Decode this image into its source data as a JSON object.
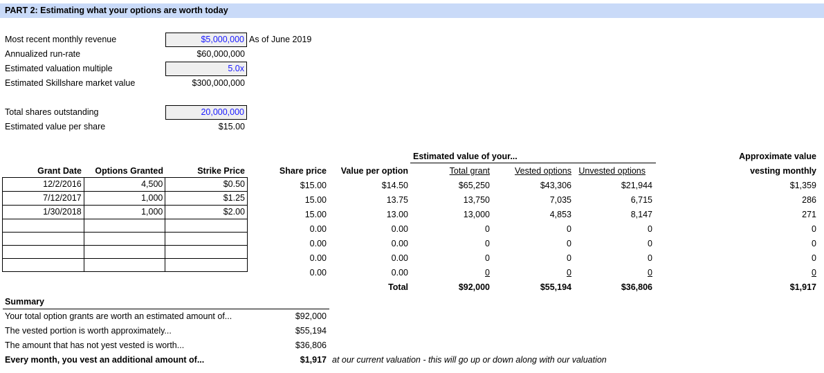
{
  "title": "PART 2: Estimating what your options are worth today",
  "inputs": {
    "monthly_revenue_label": "Most recent monthly revenue",
    "monthly_revenue": "$5,000,000",
    "as_of": "As of June 2019",
    "run_rate_label": "Annualized run-rate",
    "run_rate": "$60,000,000",
    "multiple_label": "Estimated valuation multiple",
    "multiple": "5.0x",
    "market_value_label": "Estimated Skillshare market value",
    "market_value": "$300,000,000",
    "shares_label": "Total shares outstanding",
    "shares": "20,000,000",
    "value_per_share_label": "Estimated value per share",
    "value_per_share": "$15.00"
  },
  "table": {
    "est_header": "Estimated value of your...",
    "approx_header_1": "Approximate value",
    "approx_header_2": "vesting monthly",
    "headers": {
      "grant_date": "Grant Date",
      "options_granted": "Options Granted",
      "strike_price": "Strike Price",
      "share_price": "Share price",
      "value_per_option": "Value per option",
      "total_grant": "Total grant",
      "vested": "Vested options",
      "unvested": "Unvested options"
    },
    "rows": [
      {
        "grant_date": "12/2/2016",
        "options": "4,500",
        "strike": "$0.50",
        "share_price": "$15.00",
        "vpo": "$14.50",
        "total": "$65,250",
        "vested": "$43,306",
        "unvested": "$21,944",
        "monthly": "$1,359"
      },
      {
        "grant_date": "7/12/2017",
        "options": "1,000",
        "strike": "$1.25",
        "share_price": "15.00",
        "vpo": "13.75",
        "total": "13,750",
        "vested": "7,035",
        "unvested": "6,715",
        "monthly": "286"
      },
      {
        "grant_date": "1/30/2018",
        "options": "1,000",
        "strike": "$2.00",
        "share_price": "15.00",
        "vpo": "13.00",
        "total": "13,000",
        "vested": "4,853",
        "unvested": "8,147",
        "monthly": "271"
      },
      {
        "grant_date": "",
        "options": "",
        "strike": "",
        "share_price": "0.00",
        "vpo": "0.00",
        "total": "0",
        "vested": "0",
        "unvested": "0",
        "monthly": "0"
      },
      {
        "grant_date": "",
        "options": "",
        "strike": "",
        "share_price": "0.00",
        "vpo": "0.00",
        "total": "0",
        "vested": "0",
        "unvested": "0",
        "monthly": "0"
      },
      {
        "grant_date": "",
        "options": "",
        "strike": "",
        "share_price": "0.00",
        "vpo": "0.00",
        "total": "0",
        "vested": "0",
        "unvested": "0",
        "monthly": "0"
      },
      {
        "grant_date": "",
        "options": "",
        "strike": "",
        "share_price": "0.00",
        "vpo": "0.00",
        "total": "0",
        "vested": "0",
        "unvested": "0",
        "monthly": "0"
      }
    ],
    "total_label": "Total",
    "totals": {
      "total": "$92,000",
      "vested": "$55,194",
      "unvested": "$36,806",
      "monthly": "$1,917"
    }
  },
  "summary": {
    "heading": "Summary",
    "lines": [
      {
        "label": "Your total option grants are worth an estimated amount of...",
        "value": "$92,000"
      },
      {
        "label": "The vested portion is worth approximately...",
        "value": "$55,194"
      },
      {
        "label": "The amount that has not yest vested is worth...",
        "value": "$36,806"
      },
      {
        "label": "Every month, you vest an additional amount of...",
        "value": "$1,917"
      }
    ],
    "note": "at our current valuation - this will go up or down along with our valuation"
  }
}
